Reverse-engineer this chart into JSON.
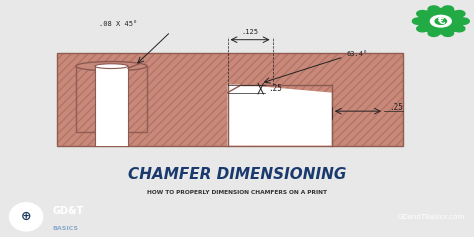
{
  "bg_top": "#e8e8e8",
  "bg_bottom": "#1a3a5c",
  "drawing_bg": "#f0eeea",
  "part_color": "#c8897a",
  "part_edge": "#8b5a52",
  "title_text": "CHAMFER DIMENSIONING",
  "title_color": "#1a3a6e",
  "subtitle_text": "HOW TO PROPERLY DIMENSION CHAMFERS ON A PRINT",
  "subtitle_color": "#333333",
  "brand_text": "GD&T",
  "brand_sub": "BASICS",
  "brand_website": "GDandTBasics.com",
  "dim1": ".08 X 45°",
  "dim2": ".125",
  "dim3": ".25",
  "dim4": "63.4°",
  "dim5": ".25",
  "hatch_color": "#a06050",
  "line_color": "#444444",
  "dim_color": "#222222",
  "gear_color": "#22aa44"
}
